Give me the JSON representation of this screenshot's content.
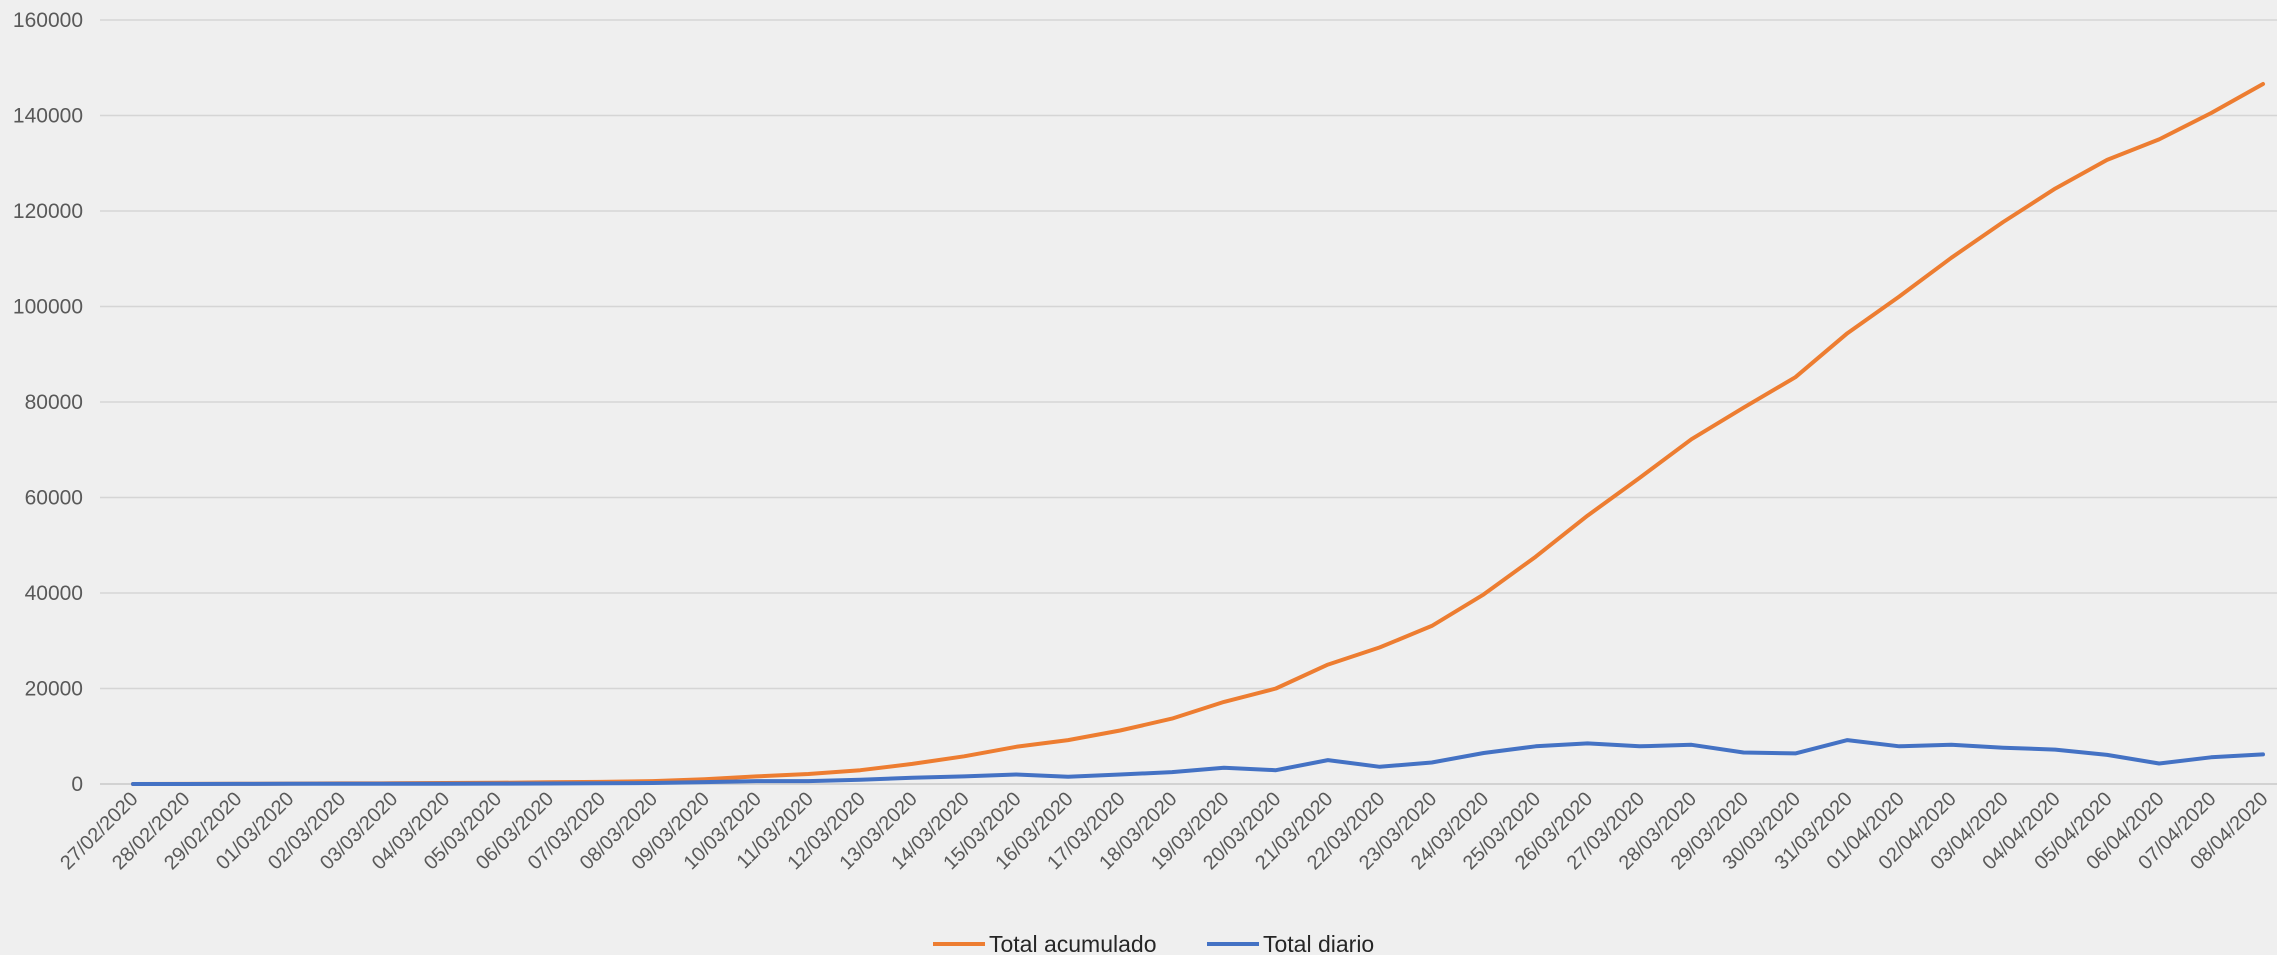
{
  "chart_data": {
    "type": "line",
    "title": "",
    "xlabel": "",
    "ylabel": "",
    "ylim": [
      0,
      160000
    ],
    "yticks": [
      0,
      20000,
      40000,
      60000,
      80000,
      100000,
      120000,
      140000,
      160000
    ],
    "grid": true,
    "legend_position": "bottom",
    "categories": [
      "27/02/2020",
      "28/02/2020",
      "29/02/2020",
      "01/03/2020",
      "02/03/2020",
      "03/03/2020",
      "04/03/2020",
      "05/03/2020",
      "06/03/2020",
      "07/03/2020",
      "08/03/2020",
      "09/03/2020",
      "10/03/2020",
      "11/03/2020",
      "12/03/2020",
      "13/03/2020",
      "14/03/2020",
      "15/03/2020",
      "16/03/2020",
      "17/03/2020",
      "18/03/2020",
      "19/03/2020",
      "20/03/2020",
      "21/03/2020",
      "22/03/2020",
      "23/03/2020",
      "24/03/2020",
      "25/03/2020",
      "26/03/2020",
      "27/03/2020",
      "28/03/2020",
      "29/03/2020",
      "30/03/2020",
      "31/03/2020",
      "01/04/2020",
      "02/04/2020",
      "03/04/2020",
      "04/04/2020",
      "05/04/2020",
      "06/04/2020",
      "07/04/2020",
      "08/04/2020"
    ],
    "series": [
      {
        "name": "Total acumulado",
        "color": "#ed7d31",
        "values": [
          10,
          20,
          40,
          80,
          120,
          150,
          200,
          250,
          350,
          450,
          600,
          1000,
          1600,
          2100,
          2900,
          4200,
          5800,
          7800,
          9200,
          11200,
          13700,
          17200,
          20000,
          25000,
          28600,
          33100,
          39700,
          47600,
          56200,
          64100,
          72200,
          78800,
          85200,
          94400,
          102100,
          110200,
          117700,
          124700,
          130700,
          135000,
          140500,
          146600
        ]
      },
      {
        "name": "Total diario",
        "color": "#4472c4",
        "values": [
          10,
          10,
          20,
          40,
          50,
          50,
          60,
          80,
          100,
          150,
          200,
          400,
          600,
          600,
          900,
          1300,
          1600,
          2000,
          1500,
          2000,
          2500,
          3400,
          2900,
          5000,
          3600,
          4500,
          6500,
          7900,
          8500,
          7900,
          8200,
          6600,
          6400,
          9200,
          7900,
          8200,
          7600,
          7200,
          6100,
          4300,
          5600,
          6200
        ]
      }
    ]
  }
}
